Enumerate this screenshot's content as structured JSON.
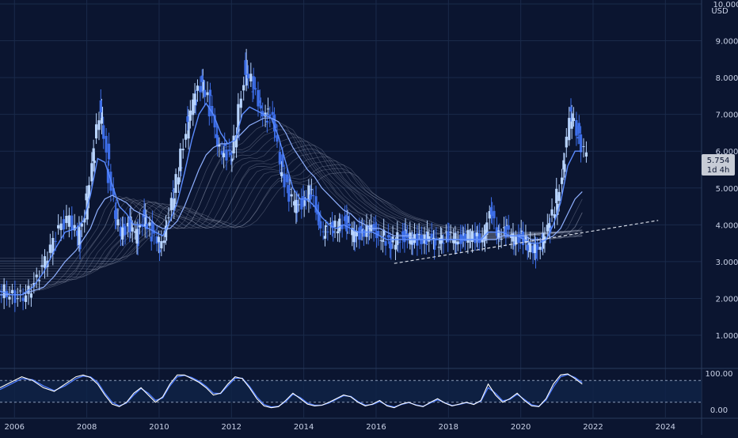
{
  "colors": {
    "background": "#0b1530",
    "grid": "#1a2a4a",
    "axis_text": "#c9d1e6",
    "candle_up": "#b8d4ff",
    "candle_down": "#3d6ee8",
    "ma_fast": "#5b8cff",
    "ma_mid": "#8fb0ff",
    "ma_ribbon": "#cfd9ee",
    "trendline": "#d8dde8",
    "price_tag_bg": "#c7ccd6",
    "price_tag_text": "#0b1530",
    "osc_line_a": "#ffffff",
    "osc_line_b": "#4f7dff",
    "osc_band": "#0f2347"
  },
  "price_axis": {
    "unit": "USD",
    "ticks": [
      "10.000",
      "9.000",
      "8.000",
      "7.000",
      "6.000",
      "5.000",
      "4.000",
      "3.000",
      "2.000",
      "1.000"
    ],
    "current_price": "5.754",
    "timeframe": "1d 4h"
  },
  "osc_axis": {
    "ticks": [
      "100.00",
      "0.00"
    ]
  },
  "time_axis": {
    "ticks": [
      "2006",
      "2008",
      "2010",
      "2012",
      "2014",
      "2016",
      "2018",
      "2020",
      "2022",
      "2024"
    ]
  },
  "chart_data": {
    "type": "line",
    "ylim": [
      0,
      10
    ],
    "xlim": [
      2005.6,
      2025.0
    ],
    "y_scale": "linear",
    "grid": true,
    "price_series": {
      "x": [
        2005.6,
        2005.9,
        2006.2,
        2006.5,
        2006.8,
        2007.1,
        2007.4,
        2007.7,
        2007.9,
        2008.1,
        2008.3,
        2008.5,
        2008.7,
        2008.9,
        2009.1,
        2009.3,
        2009.5,
        2009.7,
        2009.9,
        2010.1,
        2010.3,
        2010.5,
        2010.7,
        2010.9,
        2011.1,
        2011.3,
        2011.5,
        2011.7,
        2011.9,
        2012.1,
        2012.3,
        2012.5,
        2012.7,
        2012.9,
        2013.1,
        2013.3,
        2013.5,
        2013.7,
        2013.9,
        2014.1,
        2014.3,
        2014.5,
        2014.7,
        2014.9,
        2015.1,
        2015.3,
        2015.5,
        2015.7,
        2015.9,
        2016.1,
        2016.3,
        2016.5,
        2016.7,
        2016.9,
        2017.1,
        2017.3,
        2017.5,
        2017.7,
        2017.9,
        2018.1,
        2018.3,
        2018.5,
        2018.7,
        2018.9,
        2019.1,
        2019.3,
        2019.5,
        2019.7,
        2019.9,
        2020.1,
        2020.3,
        2020.5,
        2020.7,
        2020.9,
        2021.1,
        2021.3,
        2021.5,
        2021.7
      ],
      "close": [
        2.2,
        2.0,
        2.1,
        2.5,
        3.2,
        3.9,
        4.2,
        3.5,
        4.6,
        5.8,
        7.3,
        5.6,
        4.3,
        3.7,
        4.1,
        3.6,
        4.3,
        3.8,
        3.4,
        3.8,
        4.8,
        5.6,
        6.8,
        7.4,
        7.9,
        7.4,
        6.3,
        6.0,
        5.8,
        6.7,
        8.3,
        7.8,
        7.2,
        7.0,
        6.8,
        5.5,
        4.9,
        4.5,
        4.6,
        5.0,
        4.2,
        3.8,
        3.9,
        4.0,
        4.1,
        3.7,
        3.8,
        3.9,
        3.8,
        3.7,
        3.4,
        3.6,
        3.7,
        3.6,
        3.6,
        3.7,
        3.5,
        3.6,
        3.7,
        3.6,
        3.6,
        3.7,
        3.6,
        3.7,
        4.4,
        3.7,
        3.9,
        3.6,
        3.7,
        3.5,
        3.2,
        3.6,
        3.9,
        4.6,
        5.5,
        7.2,
        6.4,
        5.9
      ],
      "ma_fast": [
        2.2,
        2.1,
        2.1,
        2.3,
        2.7,
        3.3,
        3.8,
        3.9,
        4.1,
        4.8,
        5.8,
        5.7,
        5.1,
        4.5,
        4.3,
        4.0,
        4.0,
        3.9,
        3.8,
        3.7,
        4.1,
        4.6,
        5.4,
        6.3,
        7.0,
        7.3,
        7.0,
        6.5,
        6.2,
        6.3,
        7.0,
        7.2,
        7.1,
        7.0,
        6.9,
        6.4,
        5.7,
        5.0,
        4.7,
        4.7,
        4.5,
        4.2,
        4.0,
        3.9,
        4.0,
        3.9,
        3.8,
        3.8,
        3.8,
        3.7,
        3.6,
        3.6,
        3.6,
        3.6,
        3.6,
        3.6,
        3.6,
        3.6,
        3.6,
        3.6,
        3.6,
        3.6,
        3.6,
        3.6,
        3.8,
        3.8,
        3.8,
        3.7,
        3.7,
        3.6,
        3.5,
        3.5,
        3.6,
        4.0,
        4.6,
        5.6,
        6.0,
        6.0
      ],
      "ma_slow": [
        2.1,
        2.1,
        2.1,
        2.2,
        2.3,
        2.6,
        3.0,
        3.3,
        3.6,
        3.9,
        4.4,
        4.7,
        4.8,
        4.7,
        4.6,
        4.4,
        4.3,
        4.2,
        4.0,
        3.9,
        3.9,
        4.1,
        4.5,
        5.0,
        5.5,
        5.9,
        6.1,
        6.2,
        6.2,
        6.3,
        6.5,
        6.7,
        6.8,
        6.9,
        6.9,
        6.8,
        6.5,
        6.1,
        5.8,
        5.5,
        5.3,
        5.0,
        4.8,
        4.6,
        4.4,
        4.3,
        4.1,
        4.0,
        3.9,
        3.9,
        3.8,
        3.7,
        3.7,
        3.7,
        3.6,
        3.6,
        3.6,
        3.6,
        3.6,
        3.6,
        3.6,
        3.6,
        3.6,
        3.6,
        3.6,
        3.6,
        3.7,
        3.7,
        3.7,
        3.7,
        3.6,
        3.6,
        3.6,
        3.7,
        3.9,
        4.3,
        4.7,
        4.9
      ]
    },
    "trendline": {
      "x": [
        2016.5,
        2023.8
      ],
      "y": [
        2.95,
        4.12
      ]
    },
    "oscillator": {
      "ylim": [
        0,
        100
      ],
      "bands": [
        20,
        80
      ],
      "x": [
        2005.6,
        2005.9,
        2006.2,
        2006.5,
        2006.8,
        2007.1,
        2007.4,
        2007.7,
        2007.9,
        2008.1,
        2008.3,
        2008.5,
        2008.7,
        2008.9,
        2009.1,
        2009.3,
        2009.5,
        2009.7,
        2009.9,
        2010.1,
        2010.3,
        2010.5,
        2010.7,
        2010.9,
        2011.1,
        2011.3,
        2011.5,
        2011.7,
        2011.9,
        2012.1,
        2012.3,
        2012.5,
        2012.7,
        2012.9,
        2013.1,
        2013.3,
        2013.5,
        2013.7,
        2013.9,
        2014.1,
        2014.3,
        2014.5,
        2014.7,
        2014.9,
        2015.1,
        2015.3,
        2015.5,
        2015.7,
        2015.9,
        2016.1,
        2016.3,
        2016.5,
        2016.7,
        2016.9,
        2017.1,
        2017.3,
        2017.5,
        2017.7,
        2017.9,
        2018.1,
        2018.3,
        2018.5,
        2018.7,
        2018.9,
        2019.1,
        2019.3,
        2019.5,
        2019.7,
        2019.9,
        2020.1,
        2020.3,
        2020.5,
        2020.7,
        2020.9,
        2021.1,
        2021.3,
        2021.5,
        2021.7
      ],
      "line_a": [
        60,
        75,
        90,
        80,
        60,
        50,
        70,
        90,
        95,
        88,
        70,
        40,
        15,
        8,
        20,
        45,
        60,
        40,
        20,
        35,
        70,
        95,
        95,
        85,
        75,
        60,
        40,
        45,
        70,
        90,
        85,
        60,
        30,
        10,
        5,
        8,
        25,
        45,
        30,
        15,
        10,
        12,
        20,
        30,
        40,
        35,
        20,
        10,
        15,
        25,
        10,
        5,
        15,
        20,
        12,
        8,
        20,
        30,
        18,
        10,
        15,
        20,
        14,
        25,
        70,
        40,
        20,
        30,
        45,
        25,
        10,
        8,
        30,
        70,
        95,
        98,
        85,
        70
      ],
      "line_b": [
        55,
        70,
        85,
        82,
        65,
        52,
        65,
        85,
        92,
        90,
        75,
        45,
        20,
        10,
        18,
        40,
        58,
        45,
        25,
        32,
        65,
        90,
        94,
        88,
        78,
        64,
        45,
        44,
        65,
        86,
        86,
        64,
        35,
        14,
        7,
        9,
        22,
        42,
        33,
        18,
        12,
        12,
        18,
        28,
        38,
        36,
        22,
        12,
        14,
        22,
        12,
        7,
        14,
        19,
        13,
        9,
        18,
        27,
        19,
        11,
        14,
        19,
        15,
        23,
        60,
        45,
        24,
        28,
        42,
        28,
        13,
        9,
        26,
        62,
        90,
        96,
        88,
        74
      ]
    }
  }
}
